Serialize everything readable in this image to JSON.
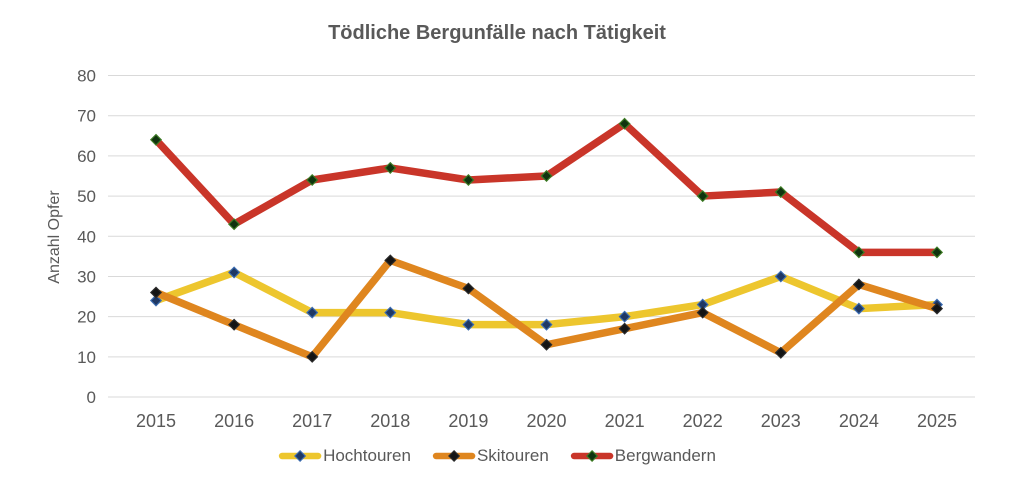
{
  "colors": {
    "background": "#ffffff",
    "text": "#595959",
    "grid": "#d9d9d9",
    "hochtouren_line": "#edc62e",
    "skitouren_line": "#df861f",
    "bergwandern_line": "#c93529"
  },
  "chart_data": {
    "type": "line",
    "title": "Tödliche Bergunfälle nach Tätigkeit",
    "xlabel": "",
    "ylabel": "Anzahl Opfer",
    "ylim": [
      0,
      80
    ],
    "ytick_step": 10,
    "grid": "horizontal",
    "legend_position": "bottom",
    "categories": [
      "2015",
      "2016",
      "2017",
      "2018",
      "2019",
      "2020",
      "2021",
      "2022",
      "2023",
      "2024",
      "2025"
    ],
    "series": [
      {
        "name": "Hochtouren",
        "color": "#edc62e",
        "marker_fill": "#1f3864",
        "marker_stroke": "#3a6bb0",
        "values": [
          24,
          31,
          21,
          21,
          18,
          18,
          20,
          23,
          30,
          22,
          23
        ]
      },
      {
        "name": "Skitouren",
        "color": "#df861f",
        "marker_fill": "#141414",
        "marker_stroke": "#2b2b2b",
        "values": [
          26,
          18,
          10,
          34,
          27,
          13,
          17,
          21,
          11,
          28,
          22
        ]
      },
      {
        "name": "Bergwandern",
        "color": "#c93529",
        "marker_fill": "#10330f",
        "marker_stroke": "#3c7a23",
        "values": [
          64,
          43,
          54,
          57,
          54,
          55,
          68,
          50,
          51,
          36,
          36
        ]
      }
    ]
  }
}
